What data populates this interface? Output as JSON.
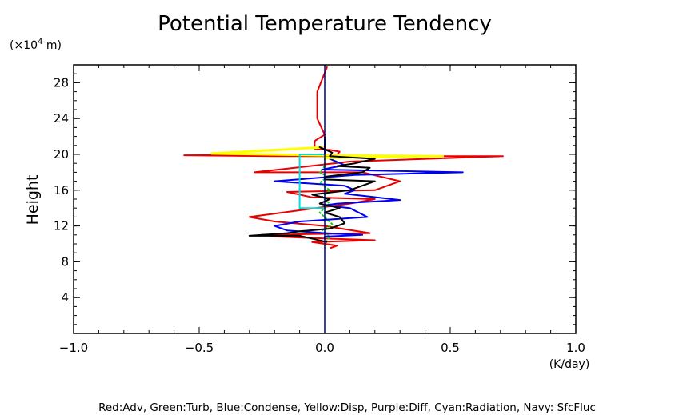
{
  "chart_data": {
    "type": "line",
    "title": "Potential Temperature Tendency",
    "ylabel": "Height",
    "y_unit_prefix": "(×10",
    "y_unit_exp": "4",
    "y_unit_suffix": " m)",
    "x_unit": "(K/day)",
    "footnote": "Red:Adv, Green:Turb, Blue:Condense, Yellow:Disp, Purple:Diff, Cyan:Radiation, Navy: SfcFluc",
    "xlim": [
      -1.0,
      1.0
    ],
    "ylim": [
      0,
      30
    ],
    "xticks": [
      -1.0,
      -0.5,
      0.0,
      0.5,
      1.0
    ],
    "xtick_labels": [
      "−1.0",
      "−0.5",
      "0.0",
      "0.5",
      "1.0"
    ],
    "yticks": [
      4,
      8,
      12,
      16,
      20,
      24,
      28
    ],
    "ytick_labels": [
      "4",
      "8",
      "12",
      "16",
      "20",
      "24",
      "28"
    ],
    "grid": false,
    "series": [
      {
        "key": "adv",
        "color": "#e60000",
        "x": [
          0.01,
          -0.03,
          -0.03,
          0.0,
          -0.04,
          -0.04,
          0.02,
          0.06,
          0.05,
          -0.56,
          -0.2,
          0.71,
          0.1,
          -0.28,
          0.15,
          0.3,
          0.2,
          -0.15,
          -0.05,
          0.2,
          0.1,
          -0.3,
          -0.2,
          0.0,
          0.18,
          -0.25,
          -0.18,
          0.0,
          0.2,
          -0.05,
          0.05,
          0.02
        ],
        "y": [
          29.8,
          27.0,
          24.0,
          22.2,
          21.5,
          20.6,
          20.5,
          20.3,
          20.0,
          19.9,
          19.8,
          19.8,
          19.2,
          18.0,
          18.0,
          17.0,
          16.0,
          15.8,
          15.2,
          15.0,
          14.5,
          13.0,
          12.5,
          12.0,
          11.2,
          11.0,
          10.8,
          10.6,
          10.4,
          10.2,
          9.8,
          9.5
        ]
      },
      {
        "key": "turb",
        "color": "#10d010",
        "x": [
          0.0,
          0.0,
          -0.02,
          0.01,
          -0.02,
          0.02,
          -0.01,
          0.02,
          -0.02,
          0.03,
          -0.01,
          0.02,
          0.0,
          0.0
        ],
        "y": [
          20.5,
          18.7,
          18.0,
          17.5,
          16.8,
          16.0,
          15.2,
          14.5,
          13.5,
          12.2,
          11.5,
          10.8,
          10.0,
          9.5
        ]
      },
      {
        "key": "condense",
        "color": "#0000ee",
        "x": [
          0.0,
          0.0,
          0.02,
          0.08,
          -0.01,
          0.55,
          0.12,
          -0.2,
          0.08,
          0.12,
          0.08,
          0.3,
          0.05,
          0.0,
          0.1,
          0.17,
          -0.1,
          -0.2,
          -0.15,
          0.0,
          0.15,
          0.0,
          0.0
        ],
        "y": [
          21.0,
          20.0,
          19.5,
          18.8,
          18.3,
          18.0,
          17.7,
          17.0,
          16.5,
          16.0,
          15.6,
          14.9,
          14.5,
          14.3,
          14.0,
          13.0,
          12.5,
          12.0,
          11.5,
          11.2,
          11.0,
          10.8,
          10.5
        ]
      },
      {
        "key": "disp",
        "color": "#ffff00",
        "x": [
          0.0,
          -0.45,
          0.0,
          0.47,
          0.0
        ],
        "y": [
          20.8,
          20.1,
          19.9,
          19.8,
          19.6
        ]
      },
      {
        "key": "radiation",
        "color": "#00dddd",
        "x": [
          0.0,
          -0.1,
          -0.1,
          0.0
        ],
        "y": [
          20.0,
          20.0,
          14.0,
          14.0
        ]
      },
      {
        "key": "total",
        "color": "#000000",
        "x": [
          0.0,
          0.0,
          0.0,
          -0.02,
          0.03,
          0.02,
          0.2,
          0.12,
          0.05,
          0.18,
          0.15,
          0.0,
          0.0,
          0.2,
          0.15,
          0.1,
          -0.05,
          0.02,
          -0.02,
          0.06,
          0.0,
          0.06,
          0.08,
          0.02,
          -0.1,
          -0.15,
          -0.3,
          -0.1,
          0.01
        ],
        "y": [
          22.0,
          21.0,
          20.5,
          20.8,
          20.2,
          19.8,
          19.5,
          19.0,
          18.7,
          18.5,
          18.0,
          17.5,
          17.2,
          17.0,
          16.5,
          16.0,
          15.5,
          15.0,
          14.5,
          14.0,
          13.5,
          13.0,
          12.3,
          11.7,
          11.4,
          11.2,
          10.9,
          10.9,
          10.2
        ]
      },
      {
        "key": "sfcfluc",
        "color": "#000080",
        "x": [
          0.0,
          0.0
        ],
        "y": [
          0.0,
          30.0
        ]
      }
    ]
  }
}
